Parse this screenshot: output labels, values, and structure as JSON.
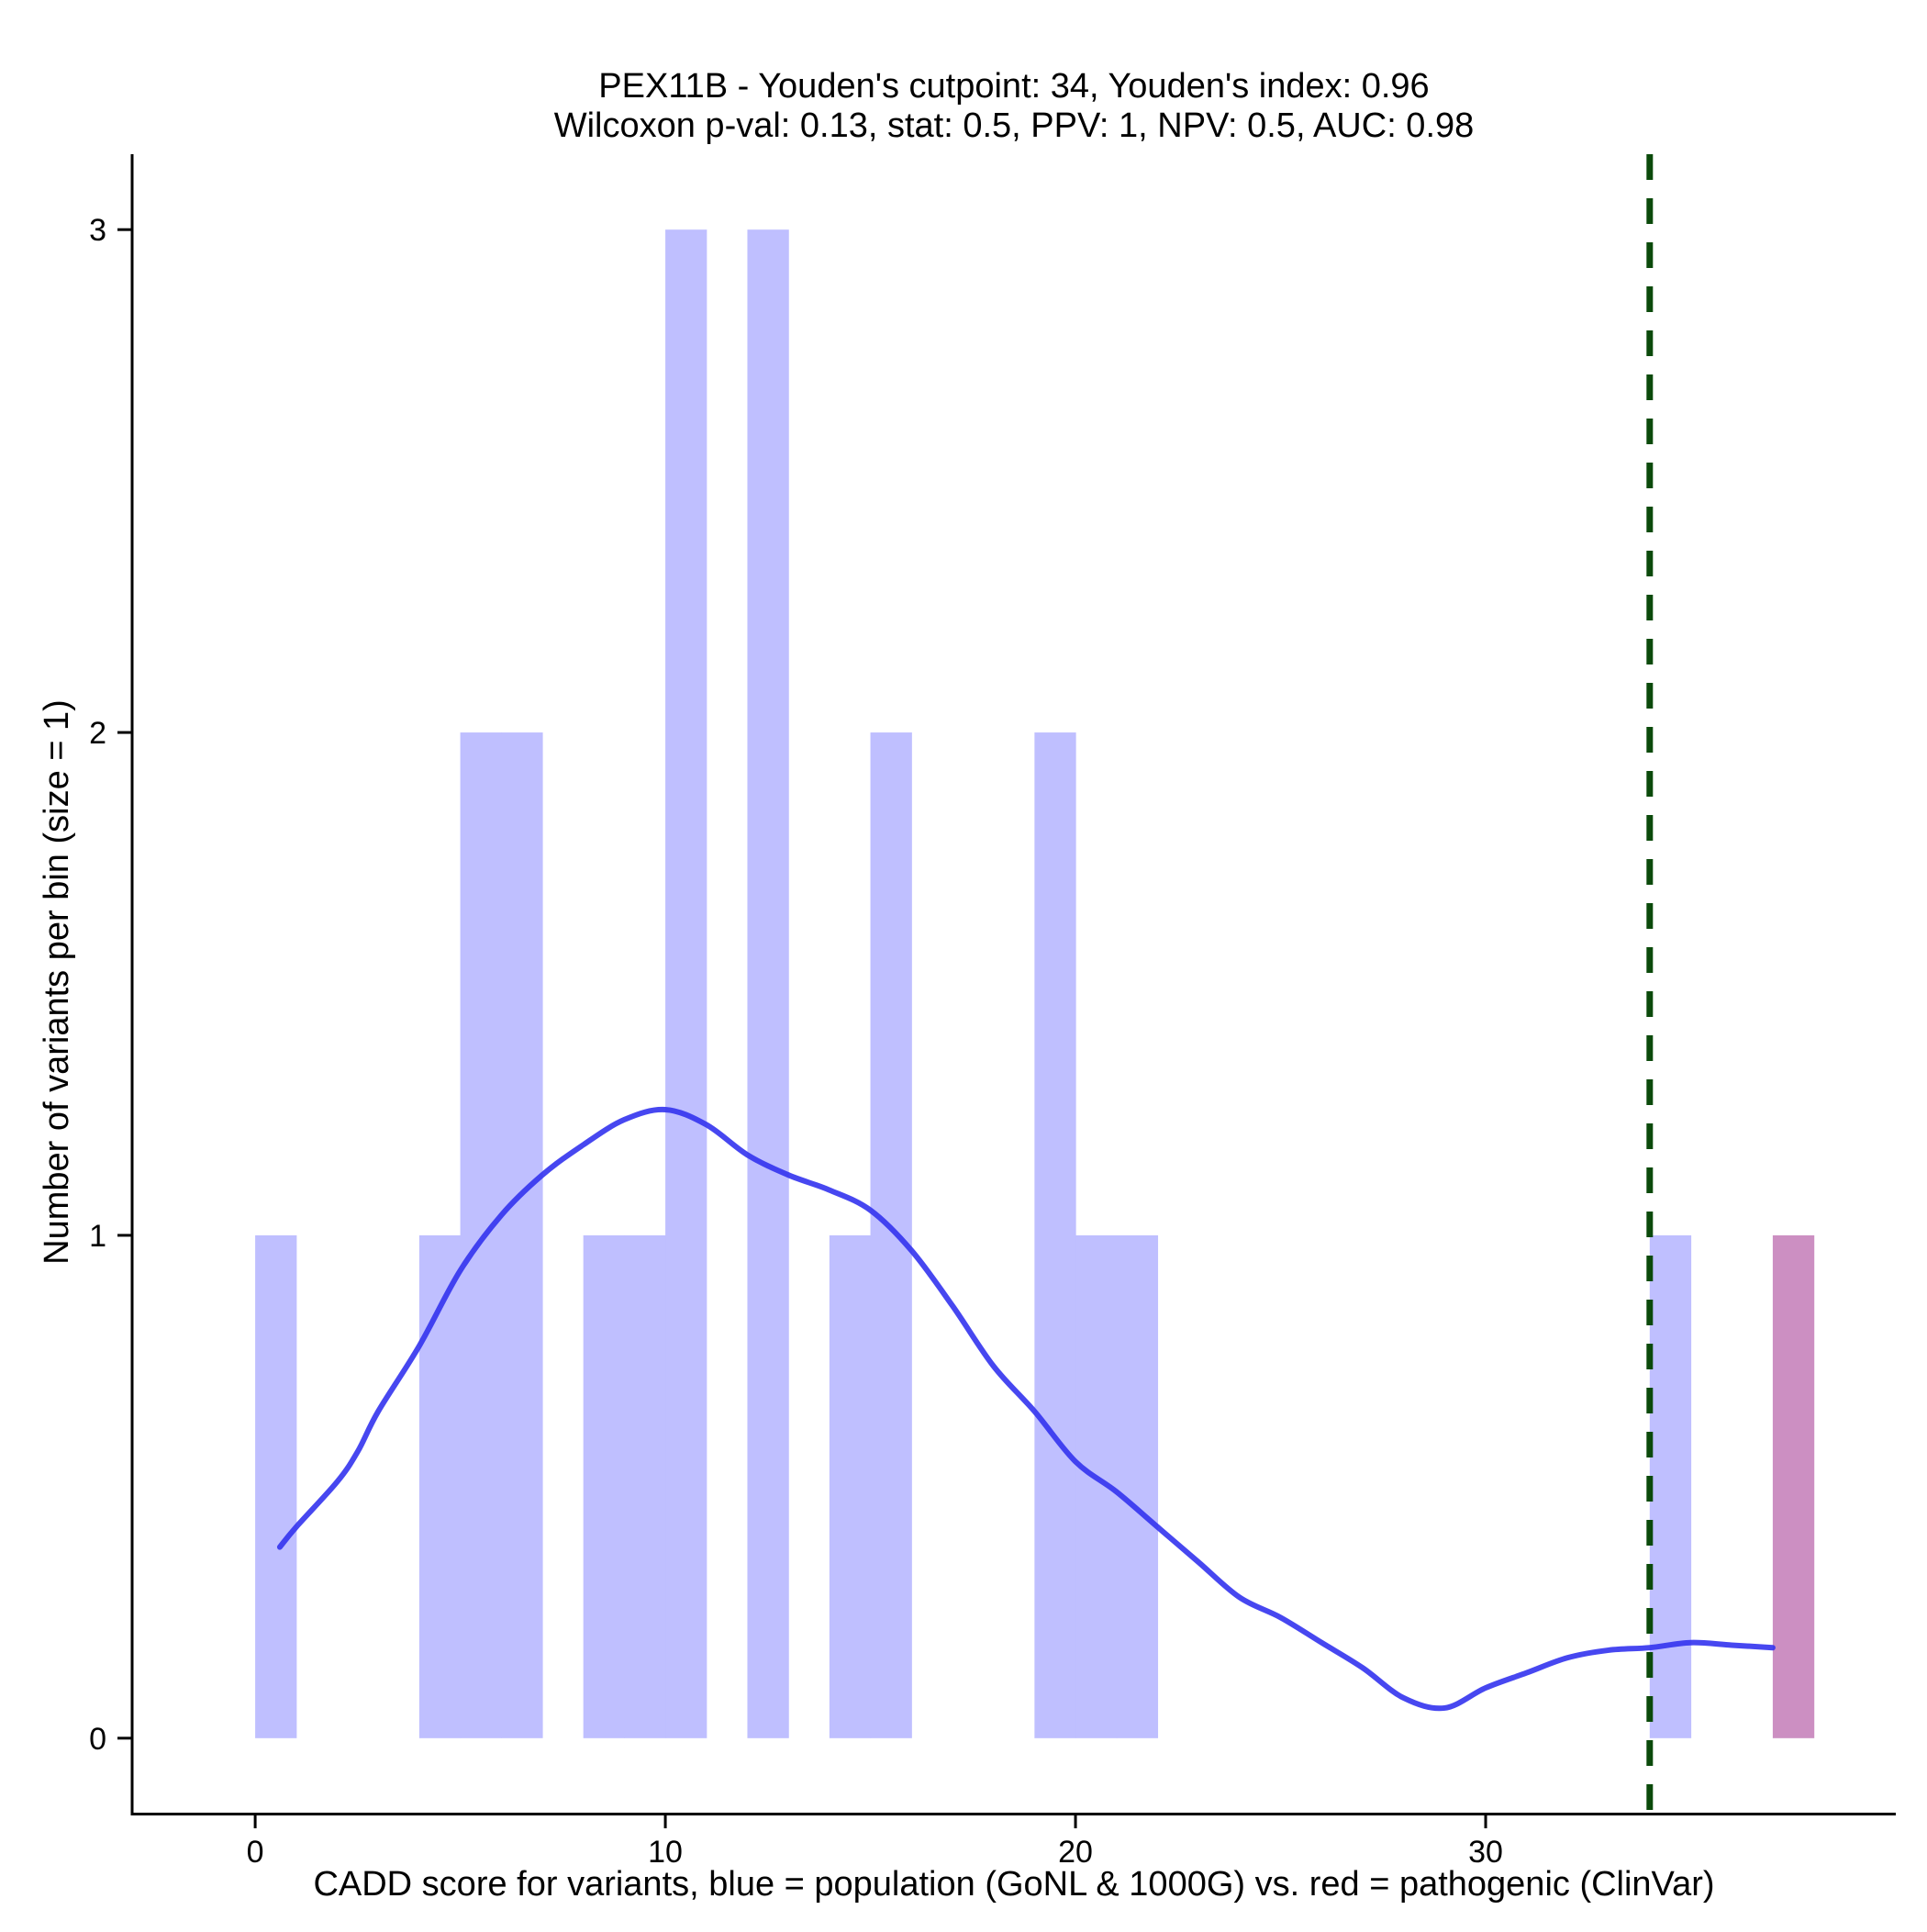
{
  "chart_data": {
    "type": "bar",
    "title_line1": "PEX11B - Youden's cutpoint: 34, Youden's index: 0.96",
    "title_line2": "Wilcoxon p-val: 0.13, stat: 0.5, PPV: 1, NPV: 0.5, AUC: 0.98",
    "xlabel": "CADD score for variants, blue = population (GoNL & 1000G) vs. red = pathogenic (ClinVar)",
    "ylabel": "Number of variants per bin (size = 1)",
    "xlim": [
      -3,
      40
    ],
    "ylim": [
      -0.15,
      3.15
    ],
    "x_ticks": [
      0,
      10,
      20,
      30
    ],
    "x_tick_labels": [
      "0",
      "10",
      "20",
      "30"
    ],
    "y_ticks": [
      0,
      1,
      2,
      3
    ],
    "y_tick_labels": [
      "0",
      "1",
      "2",
      "3"
    ],
    "bin_size": 1,
    "series": [
      {
        "name": "population (GoNL & 1000G)",
        "color": "#bfbfff",
        "bins": [
          {
            "x0": 0,
            "count": 1
          },
          {
            "x0": 4,
            "count": 1
          },
          {
            "x0": 5,
            "count": 2
          },
          {
            "x0": 6,
            "count": 2
          },
          {
            "x0": 8,
            "count": 1
          },
          {
            "x0": 9,
            "count": 1
          },
          {
            "x0": 10,
            "count": 3
          },
          {
            "x0": 12,
            "count": 3
          },
          {
            "x0": 14,
            "count": 1
          },
          {
            "x0": 15,
            "count": 2
          },
          {
            "x0": 19,
            "count": 2
          },
          {
            "x0": 20,
            "count": 1
          },
          {
            "x0": 21,
            "count": 1
          },
          {
            "x0": 34,
            "count": 1
          }
        ]
      },
      {
        "name": "pathogenic (ClinVar)",
        "color": "#cc8fc2",
        "bins": [
          {
            "x0": 37,
            "count": 1
          }
        ]
      }
    ],
    "density": {
      "name": "population density",
      "color": "#3333ee",
      "points": [
        [
          0.6,
          0.38
        ],
        [
          1.0,
          0.42
        ],
        [
          2.0,
          0.51
        ],
        [
          2.5,
          0.57
        ],
        [
          3.0,
          0.65
        ],
        [
          4.0,
          0.78
        ],
        [
          5.0,
          0.93
        ],
        [
          6.0,
          1.04
        ],
        [
          7.0,
          1.12
        ],
        [
          8.0,
          1.18
        ],
        [
          9.0,
          1.23
        ],
        [
          10.0,
          1.25
        ],
        [
          11.0,
          1.22
        ],
        [
          12.0,
          1.16
        ],
        [
          13.0,
          1.12
        ],
        [
          14.0,
          1.09
        ],
        [
          15.0,
          1.05
        ],
        [
          16.0,
          0.97
        ],
        [
          17.0,
          0.86
        ],
        [
          18.0,
          0.74
        ],
        [
          19.0,
          0.65
        ],
        [
          20.0,
          0.55
        ],
        [
          21.0,
          0.49
        ],
        [
          22.0,
          0.42
        ],
        [
          23.0,
          0.35
        ],
        [
          24.0,
          0.28
        ],
        [
          25.0,
          0.24
        ],
        [
          26.0,
          0.19
        ],
        [
          27.0,
          0.14
        ],
        [
          28.0,
          0.08
        ],
        [
          29.0,
          0.06
        ],
        [
          30.0,
          0.1
        ],
        [
          31.0,
          0.13
        ],
        [
          32.0,
          0.16
        ],
        [
          33.0,
          0.175
        ],
        [
          34.0,
          0.18
        ],
        [
          35.0,
          0.19
        ],
        [
          36.0,
          0.185
        ],
        [
          37.0,
          0.18
        ]
      ]
    },
    "cutpoint": {
      "x": 34,
      "color": "#0b4a0b",
      "style": "dashed"
    }
  }
}
